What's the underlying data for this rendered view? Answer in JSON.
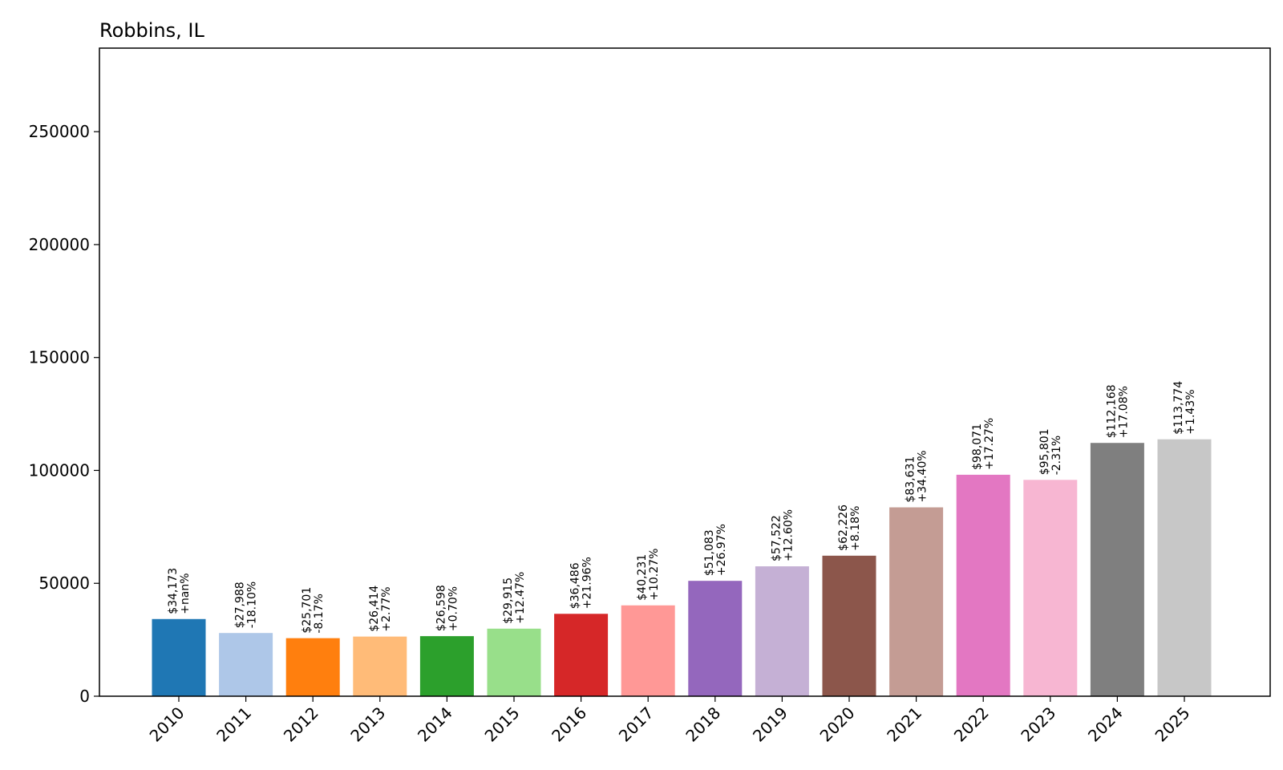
{
  "chart_data": {
    "type": "bar",
    "title": "Robbins, IL",
    "xlabel": "",
    "ylabel": "",
    "categories": [
      "2010",
      "2011",
      "2012",
      "2013",
      "2014",
      "2015",
      "2016",
      "2017",
      "2018",
      "2019",
      "2020",
      "2021",
      "2022",
      "2023",
      "2024",
      "2025"
    ],
    "values": [
      34173,
      27988,
      25701,
      26414,
      26598,
      29915,
      36486,
      40231,
      51083,
      57522,
      62226,
      83631,
      98071,
      95801,
      112168,
      113774
    ],
    "value_labels": [
      "$34,173",
      "$27,988",
      "$25,701",
      "$26,414",
      "$26,598",
      "$29,915",
      "$36,486",
      "$40,231",
      "$51,083",
      "$57,522",
      "$62,226",
      "$83,631",
      "$98,071",
      "$95,801",
      "$112,168",
      "$113,774"
    ],
    "change_labels": [
      "+nan%",
      "-18.10%",
      "-8.17%",
      "+2.77%",
      "+0.70%",
      "+12.47%",
      "+21.96%",
      "+10.27%",
      "+26.97%",
      "+12.60%",
      "+8.18%",
      "+34.40%",
      "+17.27%",
      "-2.31%",
      "+17.08%",
      "+1.43%"
    ],
    "colors": [
      "#1f77b4",
      "#aec7e8",
      "#ff7f0e",
      "#ffbb78",
      "#2ca02c",
      "#98df8a",
      "#d62728",
      "#ff9896",
      "#9467bd",
      "#c5b0d5",
      "#8c564b",
      "#c49c94",
      "#e377c2",
      "#f7b6d2",
      "#7f7f7f",
      "#c7c7c7"
    ],
    "yticks": [
      0,
      50000,
      100000,
      150000,
      200000,
      250000
    ],
    "ytick_labels": [
      "0",
      "50000",
      "100000",
      "150000",
      "200000",
      "250000"
    ],
    "ylim": [
      0,
      287000
    ],
    "grid": false,
    "legend": "none"
  }
}
